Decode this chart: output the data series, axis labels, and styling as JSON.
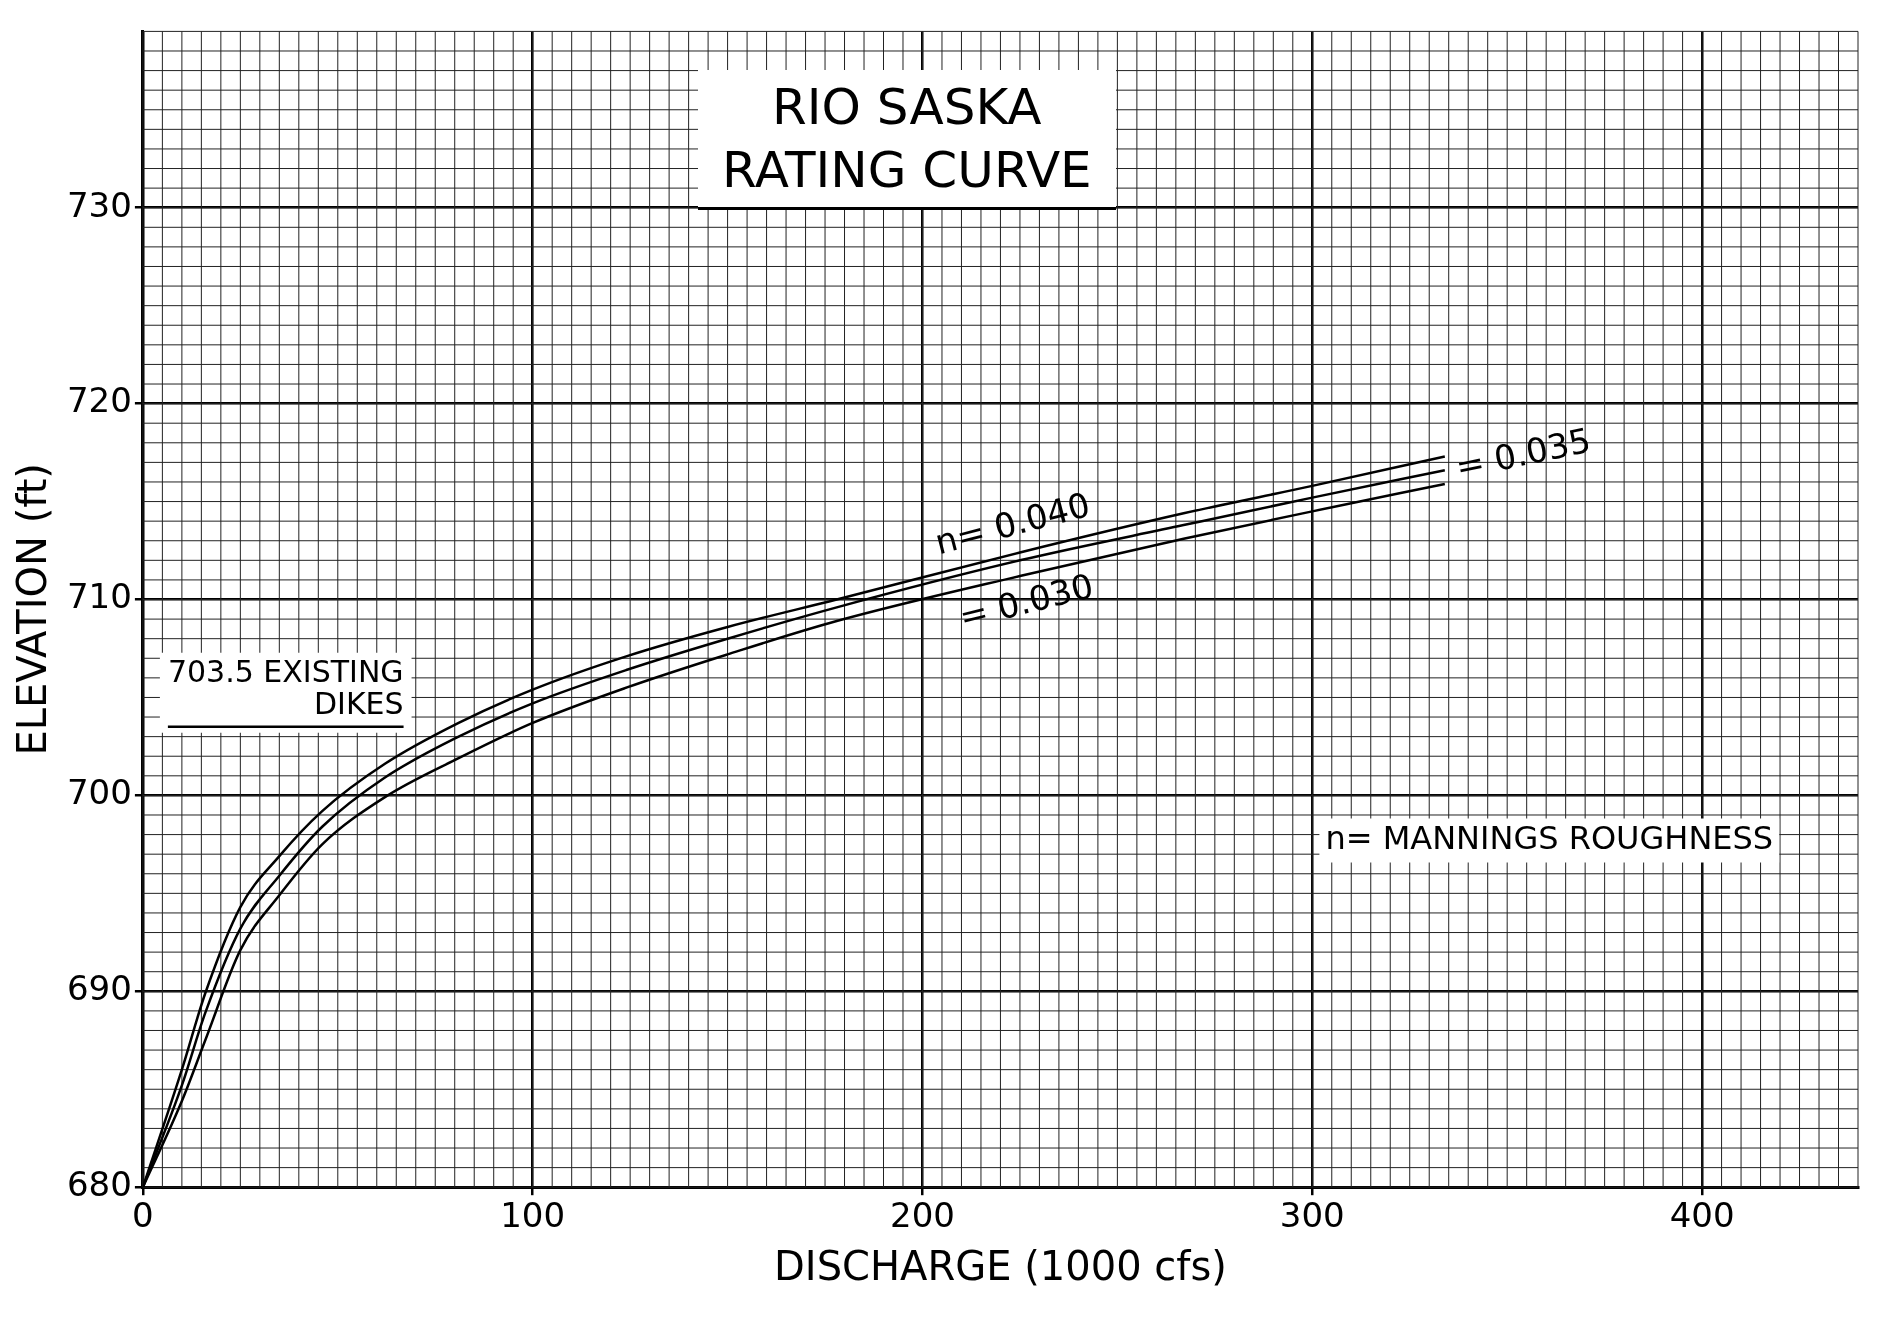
{
  "chart_data": {
    "type": "line",
    "title": "RIO SASKA",
    "subtitle": "RATING CURVE",
    "xlabel": "DISCHARGE (1000 cfs)",
    "ylabel": "ELEVATION (ft)",
    "x": [
      0,
      10,
      16,
      25,
      35,
      46,
      62,
      81,
      100,
      124,
      150,
      178,
      225,
      267,
      300,
      334
    ],
    "series": [
      {
        "name": "n= 0.040",
        "color": "#000000",
        "values": [
          680,
          686.0,
          689.9,
          694.3,
          696.9,
          699.2,
          701.6,
          703.7,
          705.4,
          707.1,
          708.6,
          710.0,
          712.4,
          714.4,
          715.8,
          717.3
        ]
      },
      {
        "name": "= 0.035",
        "color": "#000000",
        "values": [
          680,
          685.2,
          688.9,
          693.2,
          695.9,
          698.4,
          700.9,
          703.0,
          704.7,
          706.4,
          708.0,
          709.6,
          712.0,
          713.8,
          715.2,
          716.6
        ]
      },
      {
        "name": "= 0.030",
        "color": "#000000",
        "values": [
          680,
          684.4,
          687.5,
          692.1,
          694.9,
          697.5,
          699.9,
          701.9,
          703.7,
          705.5,
          707.2,
          708.9,
          711.2,
          713.1,
          714.5,
          715.9
        ]
      }
    ],
    "xlim": [
      0,
      440
    ],
    "xticks": [
      0,
      100,
      200,
      300,
      400
    ],
    "ylim": [
      680,
      739
    ],
    "yticks": [
      680,
      690,
      700,
      710,
      720,
      730
    ],
    "ref_lines": [
      {
        "axis": "y",
        "value": 703.5,
        "label": "703.5 EXISTING DIKES",
        "color": "#000000"
      }
    ],
    "annotations": [
      "n= MANNINGS ROUGHNESS"
    ],
    "grid": true,
    "legend": false,
    "marker": "none",
    "line_style": "solid"
  }
}
